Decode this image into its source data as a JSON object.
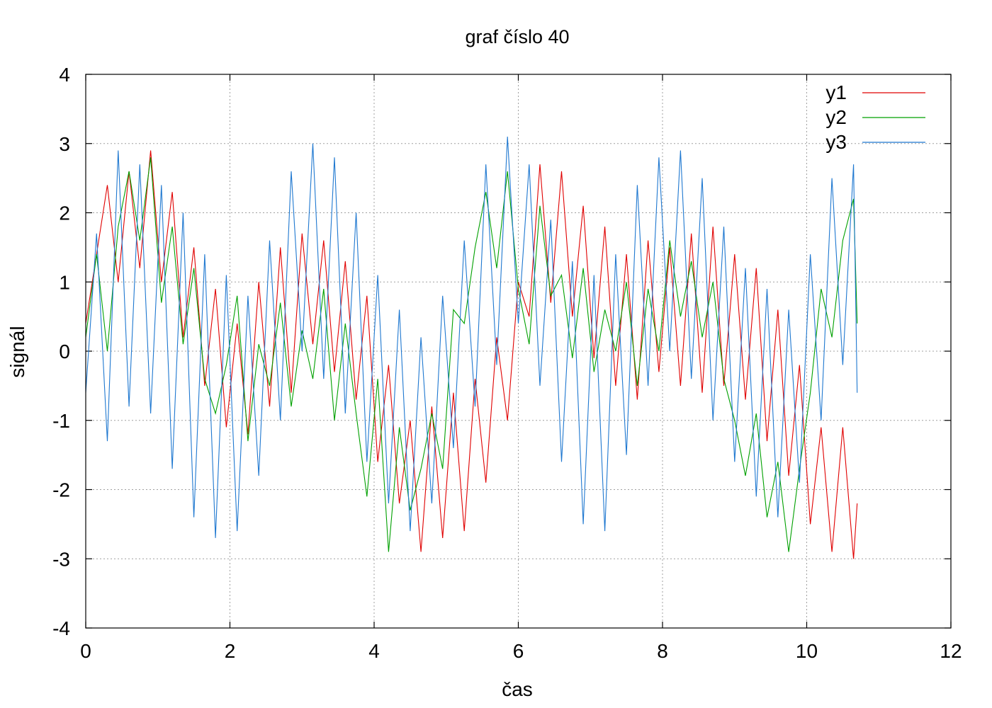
{
  "chart_data": {
    "type": "line",
    "title": "graf číslo 40",
    "xlabel": "čas",
    "ylabel": "signál",
    "xlim": [
      0,
      12
    ],
    "ylim": [
      -4,
      4
    ],
    "xticks": [
      0,
      2,
      4,
      6,
      8,
      10,
      12
    ],
    "yticks": [
      -4,
      -3,
      -2,
      -1,
      0,
      1,
      2,
      3,
      4
    ],
    "xtick_labels": [
      "0",
      "2",
      "4",
      "6",
      "8",
      "10",
      "12"
    ],
    "ytick_labels": [
      "-4",
      "-3",
      "-2",
      "-1",
      "0",
      "1",
      "2",
      "3",
      "4"
    ],
    "grid": true,
    "legend_position": "top-right",
    "x_end": 10.7,
    "series": [
      {
        "name": "y1",
        "color": "#e00000",
        "x": [
          0.0,
          0.15,
          0.3,
          0.45,
          0.6,
          0.75,
          0.9,
          1.05,
          1.2,
          1.35,
          1.5,
          1.65,
          1.8,
          1.95,
          2.1,
          2.25,
          2.4,
          2.55,
          2.7,
          2.85,
          3.0,
          3.15,
          3.3,
          3.45,
          3.6,
          3.75,
          3.9,
          4.05,
          4.2,
          4.35,
          4.5,
          4.65,
          4.8,
          4.95,
          5.1,
          5.25,
          5.4,
          5.55,
          5.7,
          5.85,
          6.0,
          6.15,
          6.3,
          6.45,
          6.6,
          6.75,
          6.9,
          7.05,
          7.2,
          7.35,
          7.5,
          7.65,
          7.8,
          7.95,
          8.1,
          8.25,
          8.4,
          8.55,
          8.7,
          8.85,
          9.0,
          9.15,
          9.3,
          9.45,
          9.6,
          9.75,
          9.9,
          10.05,
          10.2,
          10.35,
          10.5,
          10.65,
          10.7
        ],
        "y": [
          0.4,
          1.4,
          2.4,
          1.0,
          2.6,
          1.2,
          2.9,
          1.0,
          2.3,
          0.2,
          1.5,
          -0.5,
          0.9,
          -1.1,
          0.4,
          -1.2,
          1.0,
          -0.8,
          1.5,
          -0.6,
          1.7,
          0.1,
          1.6,
          -0.3,
          1.3,
          -0.7,
          0.8,
          -1.6,
          -0.2,
          -2.2,
          -1.0,
          -2.9,
          -0.8,
          -2.7,
          -0.6,
          -2.6,
          -0.4,
          -1.9,
          0.2,
          -1.0,
          1.0,
          0.5,
          2.7,
          0.7,
          2.6,
          0.5,
          2.1,
          -0.1,
          1.8,
          -0.5,
          1.4,
          -0.7,
          1.6,
          -0.3,
          1.5,
          -0.5,
          1.7,
          -0.6,
          1.8,
          -0.5,
          1.4,
          -0.7,
          1.2,
          -1.3,
          0.6,
          -1.8,
          -0.2,
          -2.5,
          -1.1,
          -2.9,
          -1.1,
          -3.0,
          -2.2
        ]
      },
      {
        "name": "y2",
        "color": "#00a000",
        "x": [
          0.0,
          0.15,
          0.3,
          0.45,
          0.6,
          0.75,
          0.9,
          1.05,
          1.2,
          1.35,
          1.5,
          1.65,
          1.8,
          1.95,
          2.1,
          2.25,
          2.4,
          2.55,
          2.7,
          2.85,
          3.0,
          3.15,
          3.3,
          3.45,
          3.6,
          3.75,
          3.9,
          4.05,
          4.2,
          4.35,
          4.5,
          4.65,
          4.8,
          4.95,
          5.1,
          5.25,
          5.4,
          5.55,
          5.7,
          5.85,
          6.0,
          6.15,
          6.3,
          6.45,
          6.6,
          6.75,
          6.9,
          7.05,
          7.2,
          7.35,
          7.5,
          7.65,
          7.8,
          7.95,
          8.1,
          8.25,
          8.4,
          8.55,
          8.7,
          8.85,
          9.0,
          9.15,
          9.3,
          9.45,
          9.6,
          9.75,
          9.9,
          10.05,
          10.2,
          10.35,
          10.5,
          10.65,
          10.7
        ],
        "y": [
          0.2,
          1.4,
          0.0,
          1.8,
          2.6,
          1.6,
          2.8,
          0.7,
          1.8,
          0.1,
          1.2,
          -0.4,
          -0.9,
          -0.2,
          0.8,
          -1.3,
          0.1,
          -0.5,
          0.7,
          -0.8,
          0.3,
          -0.4,
          0.9,
          -1.0,
          0.4,
          -0.9,
          -2.1,
          -0.4,
          -2.9,
          -1.1,
          -2.3,
          -1.7,
          -0.9,
          -1.7,
          0.6,
          0.4,
          1.5,
          2.3,
          1.2,
          2.6,
          0.9,
          0.1,
          2.1,
          0.8,
          1.1,
          -0.1,
          1.2,
          -0.3,
          0.6,
          0.0,
          1.0,
          -0.5,
          0.9,
          0.0,
          1.6,
          0.5,
          1.3,
          0.2,
          1.0,
          -0.4,
          -1.0,
          -1.8,
          -0.9,
          -2.4,
          -1.6,
          -2.9,
          -1.7,
          -0.6,
          0.9,
          0.2,
          1.6,
          2.2,
          0.4
        ]
      },
      {
        "name": "y3",
        "color": "#1f78d0",
        "x": [
          0.0,
          0.15,
          0.3,
          0.45,
          0.6,
          0.75,
          0.9,
          1.05,
          1.2,
          1.35,
          1.5,
          1.65,
          1.8,
          1.95,
          2.1,
          2.25,
          2.4,
          2.55,
          2.7,
          2.85,
          3.0,
          3.15,
          3.3,
          3.45,
          3.6,
          3.75,
          3.9,
          4.05,
          4.2,
          4.35,
          4.5,
          4.65,
          4.8,
          4.95,
          5.1,
          5.25,
          5.4,
          5.55,
          5.7,
          5.85,
          6.0,
          6.15,
          6.3,
          6.45,
          6.6,
          6.75,
          6.9,
          7.05,
          7.2,
          7.35,
          7.5,
          7.65,
          7.8,
          7.95,
          8.1,
          8.25,
          8.4,
          8.55,
          8.7,
          8.85,
          9.0,
          9.15,
          9.3,
          9.45,
          9.6,
          9.75,
          9.9,
          10.05,
          10.2,
          10.35,
          10.5,
          10.65,
          10.7
        ],
        "y": [
          -0.6,
          1.7,
          -1.3,
          2.9,
          -0.8,
          2.7,
          -0.9,
          2.4,
          -1.7,
          2.0,
          -2.4,
          1.4,
          -2.7,
          1.1,
          -2.6,
          0.8,
          -1.8,
          1.6,
          -1.0,
          2.6,
          0.0,
          3.0,
          -0.4,
          2.8,
          -0.9,
          2.0,
          -1.6,
          1.1,
          -2.2,
          0.6,
          -2.6,
          0.2,
          -2.2,
          0.8,
          -1.4,
          1.6,
          -0.8,
          2.7,
          -0.2,
          3.1,
          0.4,
          2.7,
          -0.5,
          1.9,
          -1.6,
          1.3,
          -2.5,
          1.1,
          -2.6,
          1.4,
          -1.5,
          2.4,
          -0.5,
          2.8,
          0.0,
          2.9,
          -0.4,
          2.5,
          -1.0,
          1.8,
          -1.6,
          1.2,
          -2.1,
          0.9,
          -2.4,
          0.6,
          -1.9,
          1.4,
          -1.0,
          2.5,
          -0.2,
          2.7,
          -0.6
        ]
      }
    ]
  }
}
